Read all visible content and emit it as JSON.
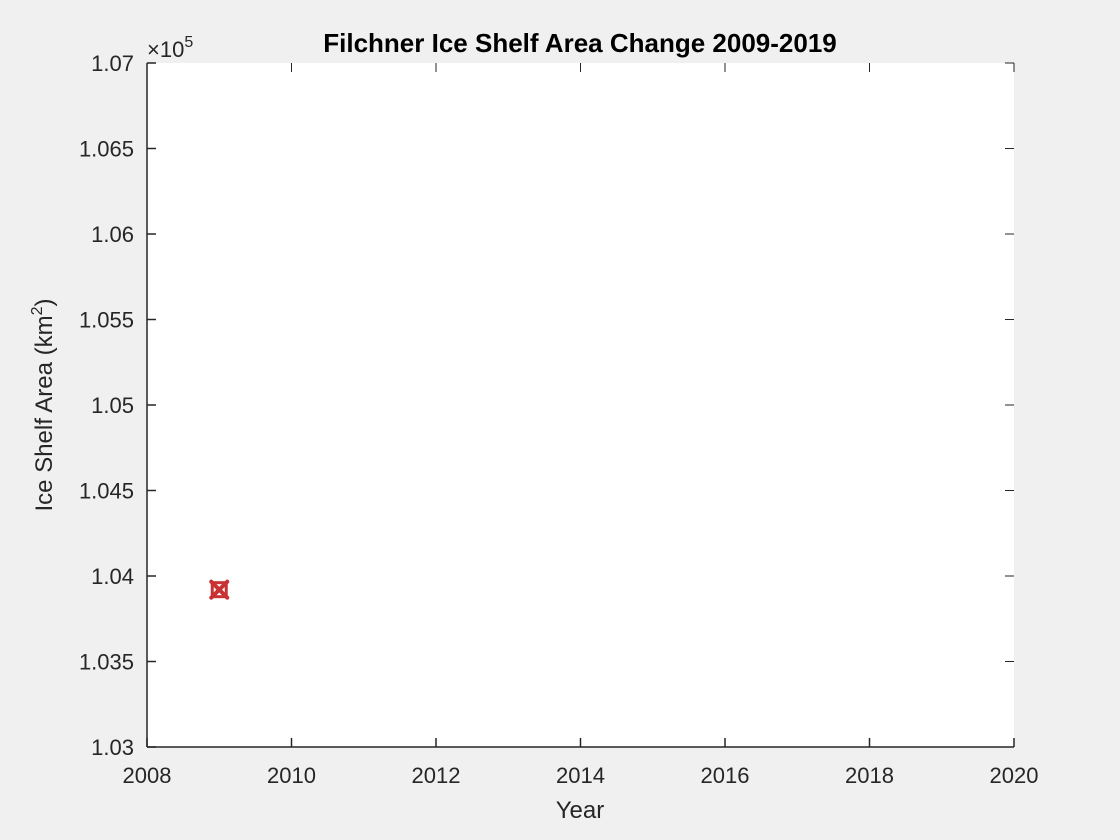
{
  "chart_data": {
    "type": "scatter",
    "title": "Filchner Ice Shelf Area Change 2009-2019",
    "xlabel": "Year",
    "ylabel": "Ice Shelf Area (km",
    "ylabel_sup": "2",
    "ylabel_close": ")",
    "y_exponent_base": "×10",
    "y_exponent_power": "5",
    "xlim": [
      2008,
      2020
    ],
    "ylim": [
      1.03,
      1.07
    ],
    "y_multiplier": 100000,
    "xticks": [
      2008,
      2010,
      2012,
      2014,
      2016,
      2018,
      2020
    ],
    "xtick_labels": [
      "2008",
      "2010",
      "2012",
      "2014",
      "2016",
      "2018",
      "2020"
    ],
    "yticks": [
      1.03,
      1.035,
      1.04,
      1.045,
      1.05,
      1.055,
      1.06,
      1.065,
      1.07
    ],
    "ytick_labels": [
      "1.03",
      "1.035",
      "1.04",
      "1.045",
      "1.05",
      "1.055",
      "1.06",
      "1.065",
      "1.07"
    ],
    "grid": false,
    "series": [
      {
        "marker": "x",
        "color": "#c83232",
        "points": [
          {
            "x": 2009,
            "y": 1.0392
          }
        ]
      }
    ]
  },
  "colors": {
    "figure_background": "#f0f0f0",
    "axes_background": "#ffffff",
    "axis_color": "#262626"
  }
}
